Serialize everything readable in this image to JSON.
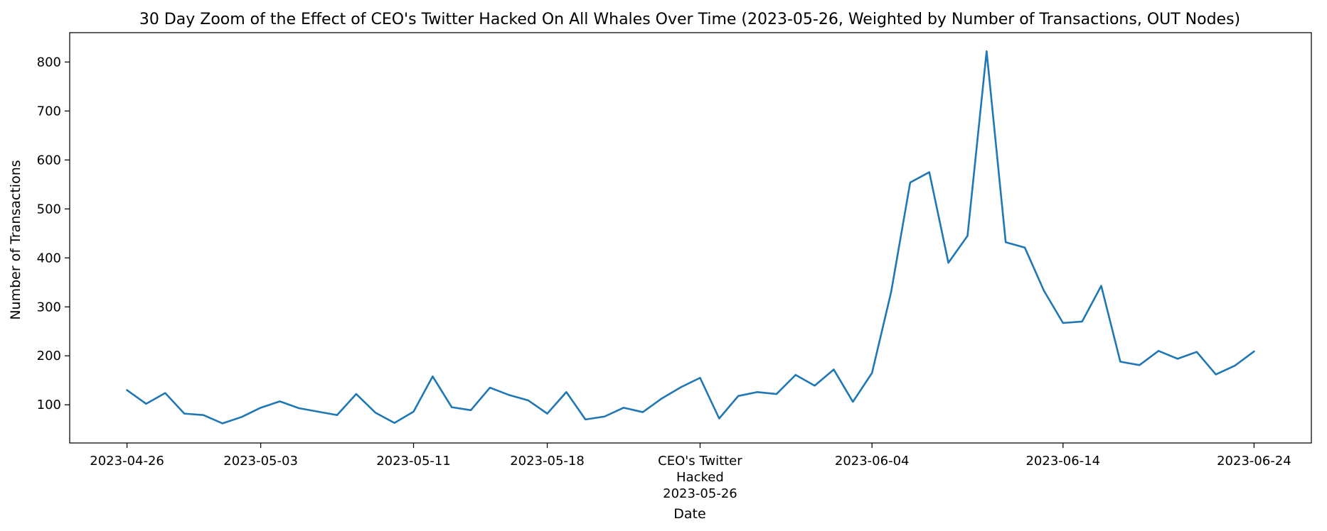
{
  "chart_data": {
    "type": "line",
    "title": "30 Day Zoom of the Effect of CEO's Twitter Hacked On All Whales Over Time (2023-05-26, Weighted by Number of Transactions, OUT Nodes)",
    "xlabel": "Date",
    "ylabel": "Number of Transactions",
    "xlim": [
      "2023-04-23",
      "2023-06-27"
    ],
    "ylim": [
      22,
      860
    ],
    "grid": false,
    "line_color": "#1f77b4",
    "x_ticks": [
      {
        "date": "2023-04-26",
        "label": "2023-04-26"
      },
      {
        "date": "2023-05-03",
        "label": "2023-05-03"
      },
      {
        "date": "2023-05-11",
        "label": "2023-05-11"
      },
      {
        "date": "2023-05-18",
        "label": "2023-05-18"
      },
      {
        "date": "2023-05-26",
        "label": "CEO's Twitter\nHacked\n2023-05-26"
      },
      {
        "date": "2023-06-04",
        "label": "2023-06-04"
      },
      {
        "date": "2023-06-14",
        "label": "2023-06-14"
      },
      {
        "date": "2023-06-24",
        "label": "2023-06-24"
      }
    ],
    "y_ticks": [
      100,
      200,
      300,
      400,
      500,
      600,
      700,
      800
    ],
    "series": [
      {
        "x": [
          "2023-04-26",
          "2023-04-27",
          "2023-04-28",
          "2023-04-29",
          "2023-04-30",
          "2023-05-01",
          "2023-05-02",
          "2023-05-03",
          "2023-05-04",
          "2023-05-05",
          "2023-05-06",
          "2023-05-07",
          "2023-05-08",
          "2023-05-09",
          "2023-05-10",
          "2023-05-11",
          "2023-05-12",
          "2023-05-13",
          "2023-05-14",
          "2023-05-15",
          "2023-05-16",
          "2023-05-17",
          "2023-05-18",
          "2023-05-19",
          "2023-05-20",
          "2023-05-21",
          "2023-05-22",
          "2023-05-23",
          "2023-05-24",
          "2023-05-25",
          "2023-05-26",
          "2023-05-27",
          "2023-05-28",
          "2023-05-29",
          "2023-05-30",
          "2023-05-31",
          "2023-06-01",
          "2023-06-02",
          "2023-06-03",
          "2023-06-04",
          "2023-06-05",
          "2023-06-06",
          "2023-06-07",
          "2023-06-08",
          "2023-06-09",
          "2023-06-10",
          "2023-06-11",
          "2023-06-12",
          "2023-06-13",
          "2023-06-14",
          "2023-06-15",
          "2023-06-16",
          "2023-06-17",
          "2023-06-18",
          "2023-06-19",
          "2023-06-20",
          "2023-06-21",
          "2023-06-22",
          "2023-06-23",
          "2023-06-24"
        ],
        "values": [
          130,
          102,
          124,
          82,
          79,
          62,
          75,
          94,
          107,
          93,
          86,
          79,
          122,
          84,
          63,
          86,
          158,
          95,
          89,
          135,
          120,
          109,
          82,
          126,
          70,
          76,
          94,
          85,
          113,
          136,
          155,
          72,
          118,
          126,
          122,
          161,
          139,
          172,
          106,
          165,
          330,
          554,
          575,
          390,
          445,
          822,
          432,
          421,
          333,
          267,
          270,
          343,
          188,
          181,
          210,
          194,
          208,
          162,
          180,
          209
        ]
      }
    ]
  }
}
